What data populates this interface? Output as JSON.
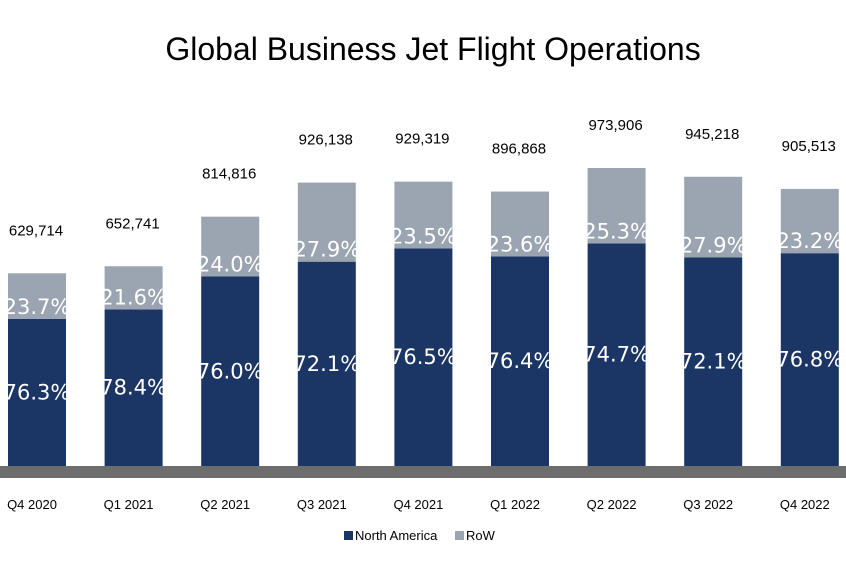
{
  "chart_data": {
    "type": "bar",
    "stacked": true,
    "title": "Global Business Jet Flight Operations",
    "categories": [
      "Q4 2020",
      "Q1 2021",
      "Q2 2021",
      "Q3 2021",
      "Q4 2021",
      "Q1 2022",
      "Q2 2022",
      "Q3 2022",
      "Q4 2022"
    ],
    "totals": [
      629714,
      652741,
      814816,
      926138,
      929319,
      896868,
      973906,
      945218,
      905513
    ],
    "total_labels": [
      "629,714",
      "652,741",
      "814,816",
      "926,138",
      "929,319",
      "896,868",
      "973,906",
      "945,218",
      "905,513"
    ],
    "series": [
      {
        "name": "North America",
        "color": "#1b3564",
        "share_pct": [
          76.3,
          78.4,
          76.0,
          72.1,
          76.5,
          76.4,
          74.7,
          72.1,
          76.8
        ],
        "labels": [
          "76.3%",
          "78.4%",
          "76.0%",
          "72.1%",
          "76.5%",
          "76.4%",
          "74.7%",
          "72.1%",
          "76.8%"
        ]
      },
      {
        "name": "RoW",
        "color": "#9ba5b1",
        "share_pct": [
          23.7,
          21.6,
          24.0,
          27.9,
          23.5,
          23.6,
          25.3,
          27.9,
          23.2
        ],
        "labels": [
          "23.7%",
          "21.6%",
          "24.0%",
          "27.9%",
          "23.5%",
          "23.6%",
          "25.3%",
          "27.9%",
          "23.2%"
        ]
      }
    ],
    "legend_position": "bottom",
    "grid": false,
    "axis_band_color": "#6d6d6d"
  }
}
